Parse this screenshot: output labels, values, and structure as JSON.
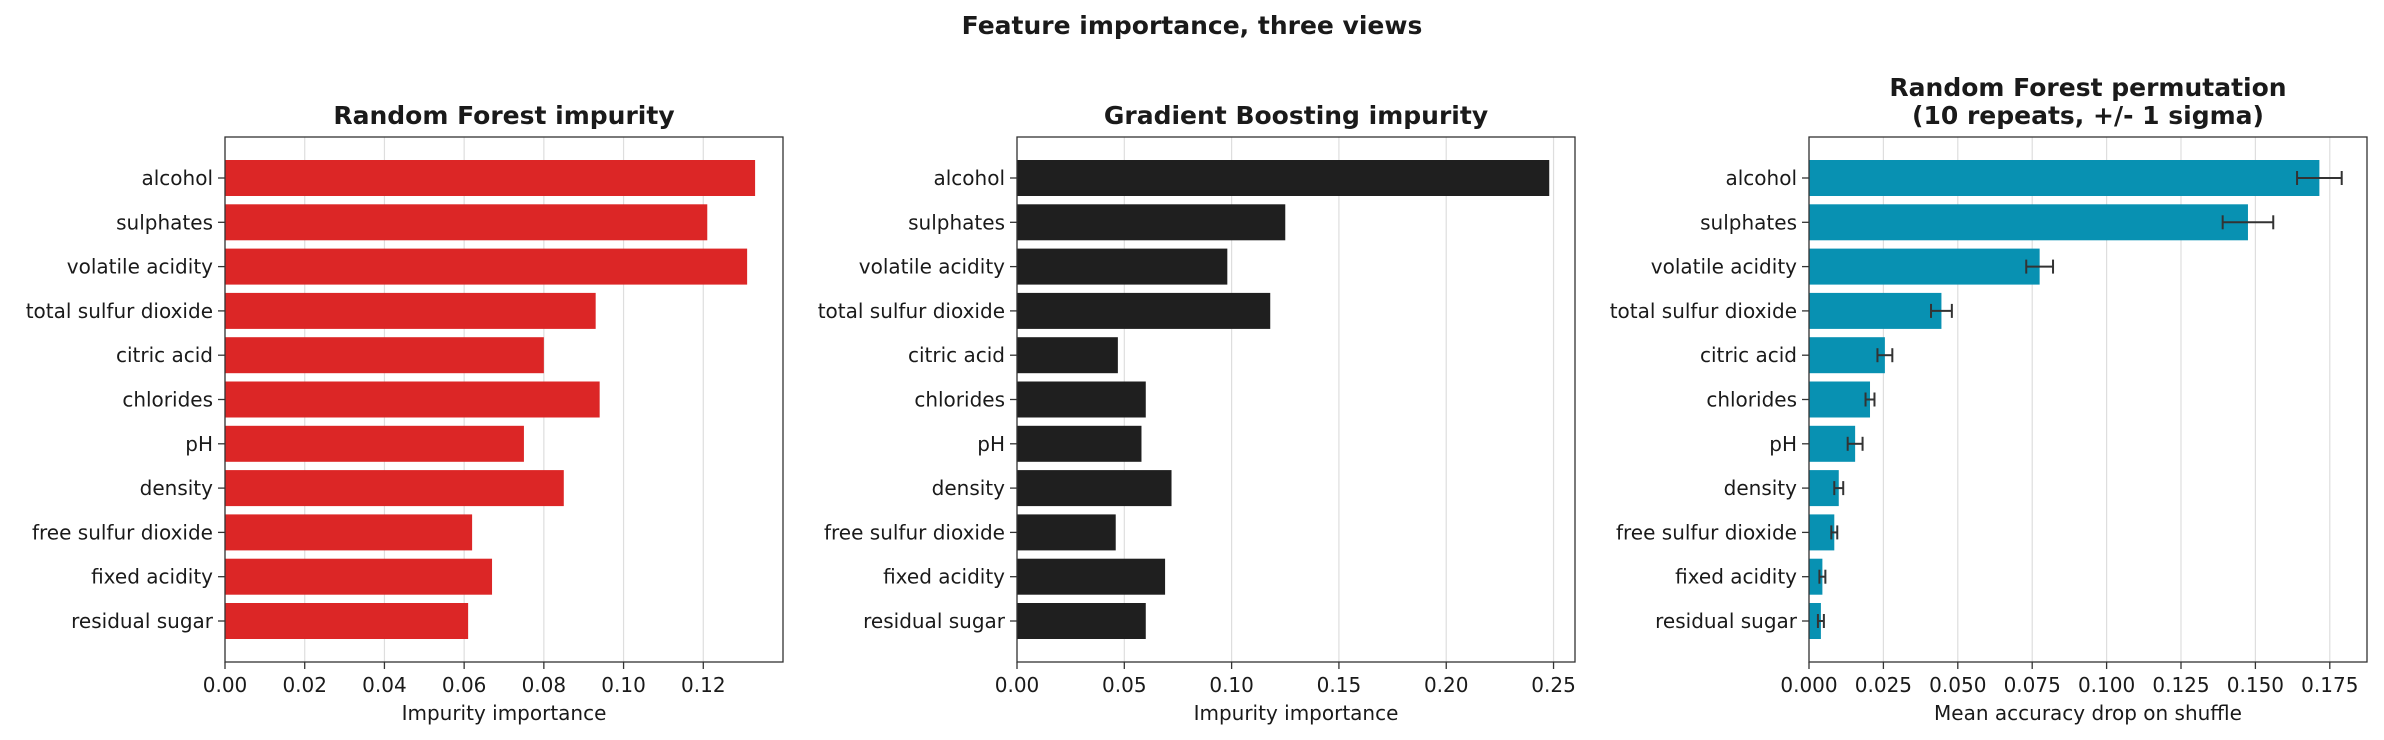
{
  "figure": {
    "suptitle": "Feature importance, three views"
  },
  "chart_data": [
    {
      "type": "bar",
      "orientation": "horizontal",
      "title": "Random Forest impurity",
      "xlabel": "Impurity importance",
      "ylabel": "",
      "xlim": [
        0,
        0.14
      ],
      "xticks": [
        0,
        0.02,
        0.04,
        0.06,
        0.08,
        0.1,
        0.12
      ],
      "xtick_labels": [
        "0.00",
        "0.02",
        "0.04",
        "0.06",
        "0.08",
        "0.10",
        "0.12"
      ],
      "grid": "vertical",
      "color": "#dc2626",
      "categories": [
        "alcohol",
        "sulphates",
        "volatile acidity",
        "total sulfur dioxide",
        "citric acid",
        "chlorides",
        "pH",
        "density",
        "free sulfur dioxide",
        "fixed acidity",
        "residual sugar"
      ],
      "values": [
        0.133,
        0.121,
        0.131,
        0.093,
        0.08,
        0.094,
        0.075,
        0.085,
        0.062,
        0.067,
        0.061
      ]
    },
    {
      "type": "bar",
      "orientation": "horizontal",
      "title": "Gradient Boosting impurity",
      "xlabel": "Impurity importance",
      "ylabel": "",
      "xlim": [
        0,
        0.26
      ],
      "xticks": [
        0,
        0.05,
        0.1,
        0.15,
        0.2,
        0.25
      ],
      "xtick_labels": [
        "0.00",
        "0.05",
        "0.10",
        "0.15",
        "0.20",
        "0.25"
      ],
      "grid": "vertical",
      "color": "#1f1f1f",
      "categories": [
        "alcohol",
        "sulphates",
        "volatile acidity",
        "total sulfur dioxide",
        "citric acid",
        "chlorides",
        "pH",
        "density",
        "free sulfur dioxide",
        "fixed acidity",
        "residual sugar"
      ],
      "values": [
        0.248,
        0.125,
        0.098,
        0.118,
        0.047,
        0.06,
        0.058,
        0.072,
        0.046,
        0.069,
        0.06
      ]
    },
    {
      "type": "bar",
      "orientation": "horizontal",
      "title": "Random Forest permutation\n(10 repeats, +/- 1 sigma)",
      "xlabel": "Mean accuracy drop on shuffle",
      "ylabel": "",
      "xlim": [
        0,
        0.1875
      ],
      "xticks": [
        0,
        0.025,
        0.05,
        0.075,
        0.1,
        0.125,
        0.15,
        0.175
      ],
      "xtick_labels": [
        "0.000",
        "0.025",
        "0.050",
        "0.075",
        "0.100",
        "0.125",
        "0.150",
        "0.175"
      ],
      "grid": "vertical",
      "color": "#0891b2",
      "categories": [
        "alcohol",
        "sulphates",
        "volatile acidity",
        "total sulfur dioxide",
        "citric acid",
        "chlorides",
        "pH",
        "density",
        "free sulfur dioxide",
        "fixed acidity",
        "residual sugar"
      ],
      "values": [
        0.1715,
        0.1475,
        0.0775,
        0.0445,
        0.0255,
        0.0205,
        0.0155,
        0.01,
        0.0085,
        0.0045,
        0.004
      ],
      "errors": [
        0.0075,
        0.0085,
        0.0045,
        0.0035,
        0.0025,
        0.0015,
        0.0025,
        0.0015,
        0.001,
        0.001,
        0.001
      ]
    }
  ]
}
